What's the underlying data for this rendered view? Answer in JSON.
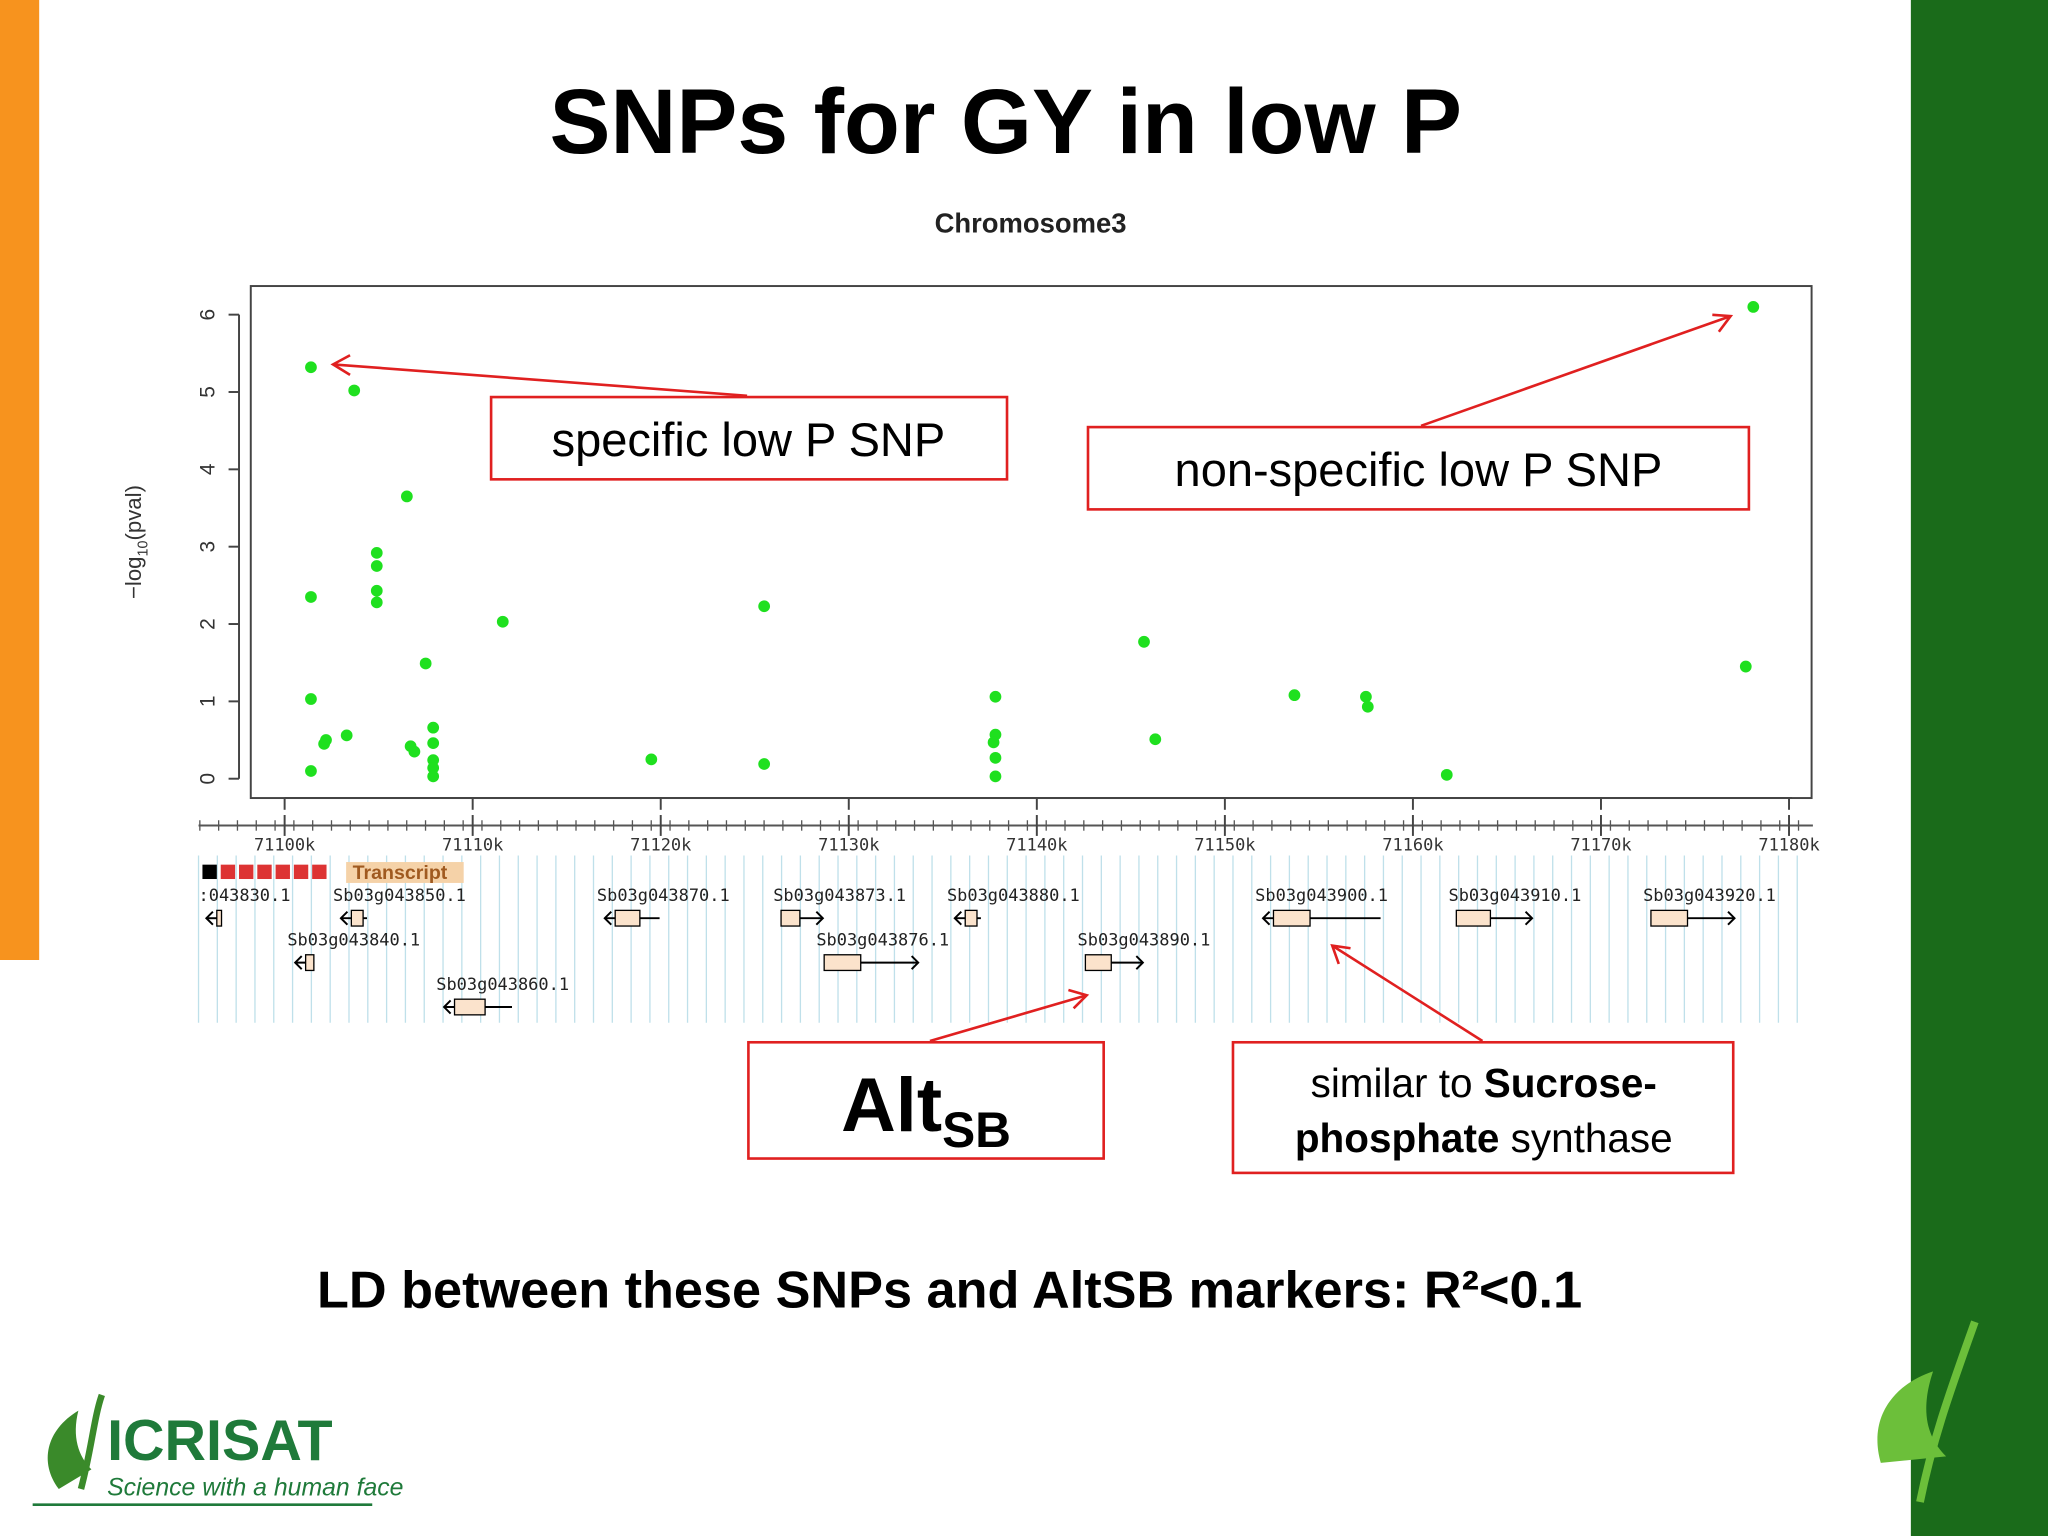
{
  "slide": {
    "title": "SNPs for GY in low P",
    "annotations": {
      "specific": "specific low P SNP",
      "non_specific": "non-specific low P SNP",
      "alt_main": "Alt",
      "alt_sub": "SB",
      "sucrose": [
        "similar to ",
        "Sucrose-",
        "phosphate",
        " synthase"
      ]
    },
    "footer": "LD between these SNPs and AltSB markers: R²<0.1",
    "logo": {
      "name": "ICRISAT",
      "tagline": "Science with a human face"
    }
  },
  "gene_track": {
    "header": "Transcript",
    "genes": [
      ":043830.1",
      "Sb03g043850.1",
      "Sb03g043840.1",
      "Sb03g043860.1",
      "Sb03g043870.1",
      "Sb03g043873.1",
      "Sb03g043876.1",
      "Sb03g043880.1",
      "Sb03g043890.1",
      "Sb03g043900.1",
      "Sb03g043910.1",
      "Sb03g043920.1"
    ]
  },
  "chart_data": {
    "type": "scatter",
    "title": "Chromosome3",
    "y_label": [
      "−log",
      "10",
      "(pval)"
    ],
    "color": "#1fe01f",
    "x": [
      71101.4,
      71103.7,
      71101.4,
      71101.4,
      71101.4,
      71102.2,
      71102.1,
      71103.3,
      71106.5,
      71104.9,
      71104.9,
      71104.9,
      71104.9,
      71107.5,
      71106.7,
      71106.9,
      71107.9,
      71107.9,
      71107.9,
      71107.9,
      71107.9,
      71111.6,
      71119.5,
      71125.5,
      71125.5,
      71137.8,
      71137.8,
      71137.7,
      71137.8,
      71137.8,
      71145.7,
      71146.3,
      71153.7,
      71157.5,
      71157.6,
      71161.8,
      71177.7,
      71178.1
    ],
    "values": [
      5.32,
      5.02,
      2.35,
      1.03,
      0.1,
      0.5,
      0.45,
      0.56,
      3.65,
      2.92,
      2.75,
      2.43,
      2.28,
      1.49,
      0.42,
      0.35,
      0.66,
      0.46,
      0.24,
      0.14,
      0.03,
      2.03,
      0.25,
      2.23,
      0.19,
      1.06,
      0.57,
      0.47,
      0.27,
      0.03,
      1.77,
      0.51,
      1.08,
      1.06,
      0.93,
      0.05,
      1.45,
      6.1
    ],
    "xlim": [
      71098.2,
      71181.2
    ],
    "ylim": [
      -0.25,
      6.37
    ],
    "yticks": [
      0,
      1,
      2,
      3,
      4,
      5,
      6
    ],
    "xticks": [
      {
        "value": 71100,
        "label": "71100k"
      },
      {
        "value": 71110,
        "label": "71110k"
      },
      {
        "value": 71120,
        "label": "71120k"
      },
      {
        "value": 71130,
        "label": "71130k"
      },
      {
        "value": 71140,
        "label": "71140k"
      },
      {
        "value": 71150,
        "label": "71150k"
      },
      {
        "value": 71160,
        "label": "71160k"
      },
      {
        "value": 71170,
        "label": "71170k"
      },
      {
        "value": 71180,
        "label": "71180k"
      }
    ]
  }
}
